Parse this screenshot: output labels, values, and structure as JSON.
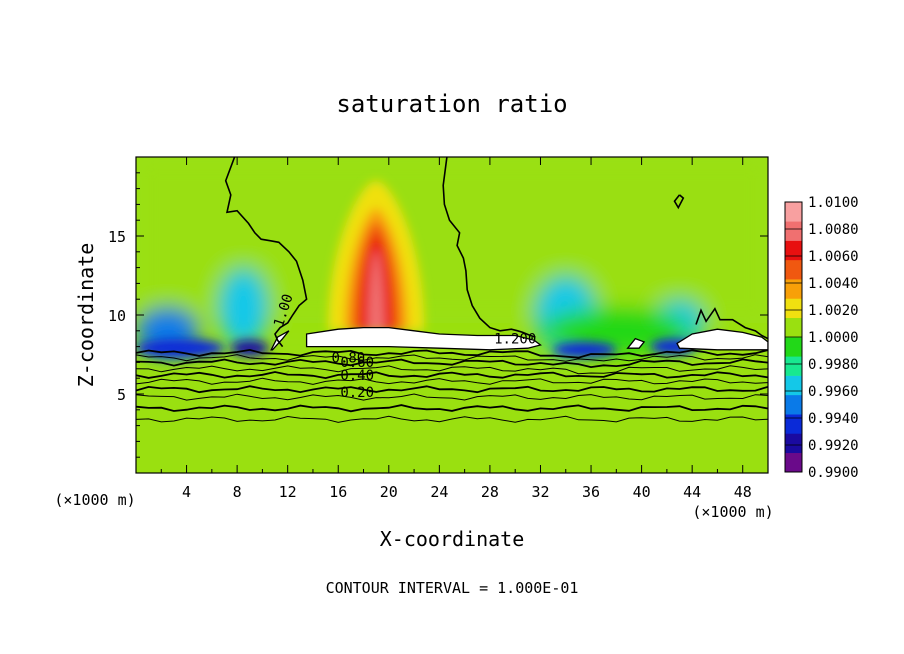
{
  "chart_data": {
    "type": "heatmap",
    "title": "saturation ratio",
    "xlabel": "X-coordinate",
    "ylabel": "Z-coordinate",
    "x_unit_left": "(×1000 m)",
    "x_unit_right": "(×1000 m)",
    "footer": "CONTOUR INTERVAL = 1.000E-01",
    "xlim": [
      0,
      50
    ],
    "ylim": [
      0,
      20
    ],
    "x_ticks": [
      4,
      8,
      12,
      16,
      20,
      24,
      28,
      32,
      36,
      40,
      44,
      48
    ],
    "y_ticks": [
      5,
      10,
      15
    ],
    "colorbar": {
      "labels": [
        "1.0100",
        "1.0080",
        "1.0060",
        "1.0040",
        "1.0020",
        "1.0000",
        "0.9980",
        "0.9960",
        "0.9940",
        "0.9920",
        "0.9900"
      ],
      "min": 0.99,
      "max": 1.01,
      "colors": [
        "#6a0a8a",
        "#1a0aa0",
        "#0a2ad8",
        "#0a7ae8",
        "#14c8e8",
        "#18e890",
        "#22d818",
        "#9ae010",
        "#f0e010",
        "#f8a008",
        "#f05810",
        "#e81010",
        "#f07070",
        "#f8a0a0"
      ]
    },
    "contour_labels": [
      {
        "text": "1.00",
        "x": 12,
        "z": 10.2,
        "angle": -72
      },
      {
        "text": "1.200",
        "x": 30,
        "z": 8.2,
        "angle": 0
      },
      {
        "text": "0.80",
        "x": 16.8,
        "z": 7.0,
        "angle": 0
      },
      {
        "text": "0.60",
        "x": 17.5,
        "z": 6.7,
        "angle": 0
      },
      {
        "text": "0.40",
        "x": 17.5,
        "z": 5.9,
        "angle": 0
      },
      {
        "text": "0.20",
        "x": 17.5,
        "z": 4.8,
        "angle": 0
      }
    ],
    "below_cloud_contours": [
      7.6,
      7.3,
      7.0,
      6.6,
      6.2,
      5.8,
      5.3,
      4.8,
      4.1,
      3.4
    ],
    "features": [
      {
        "kind": "background",
        "value": 1.0002
      },
      {
        "kind": "moist_band",
        "value": 1.0005,
        "x0": 0,
        "x1": 50,
        "z0": 9.5,
        "z1": 20
      },
      {
        "kind": "plume",
        "value": 1.0075,
        "x": 19,
        "z_base": 9.0,
        "height": 9.5,
        "width": 3.8
      },
      {
        "kind": "blob",
        "value": 0.9965,
        "x": 8.5,
        "z": 10.5,
        "rx": 2.0,
        "rz": 2.5
      },
      {
        "kind": "blob",
        "value": 0.9955,
        "x": 2.5,
        "z": 9.0,
        "rx": 2.5,
        "rz": 1.5
      },
      {
        "kind": "blob",
        "value": 0.9965,
        "x": 34,
        "z": 10.0,
        "rx": 2.5,
        "rz": 2.5
      },
      {
        "kind": "blob",
        "value": 0.996,
        "x": 43,
        "z": 9.5,
        "rx": 2.0,
        "rz": 1.5
      },
      {
        "kind": "blob",
        "value": 0.9935,
        "x": 3.5,
        "z": 7.9,
        "rx": 3.5,
        "rz": 0.6
      },
      {
        "kind": "blob",
        "value": 0.9925,
        "x": 9.0,
        "z": 7.9,
        "rx": 1.5,
        "rz": 0.5
      },
      {
        "kind": "blob",
        "value": 0.993,
        "x": 35.5,
        "z": 7.8,
        "rx": 2.5,
        "rz": 0.5
      },
      {
        "kind": "blob",
        "value": 0.9935,
        "x": 42.5,
        "z": 8.0,
        "rx": 1.8,
        "rz": 0.5
      },
      {
        "kind": "blob",
        "value": 0.999,
        "x": 38,
        "z": 9.0,
        "rx": 6,
        "rz": 1.5
      }
    ],
    "clouds": [
      {
        "x": [
          13.5,
          16,
          18,
          20,
          22,
          24,
          27,
          30,
          31.5,
          32,
          31,
          28,
          24,
          20,
          16,
          13.5
        ],
        "z": [
          8.8,
          9.1,
          9.2,
          9.2,
          9.0,
          8.8,
          8.7,
          8.7,
          8.4,
          8.1,
          7.9,
          7.8,
          7.9,
          8.0,
          8.0,
          8.0
        ]
      },
      {
        "x": [
          42.8,
          44,
          46,
          48,
          49.5,
          50,
          50,
          46,
          43,
          42.8
        ],
        "z": [
          8.2,
          8.8,
          9.1,
          8.9,
          8.6,
          8.3,
          7.8,
          7.8,
          7.9,
          8.2
        ]
      },
      {
        "x": [
          10.7,
          11.2,
          12.1,
          11.6,
          10.8,
          10.7
        ],
        "z": [
          7.8,
          8.6,
          9.0,
          8.5,
          7.8,
          7.8
        ]
      },
      {
        "x": [
          38.9,
          39.5,
          40.2,
          39.8,
          38.9
        ],
        "z": [
          7.9,
          8.5,
          8.3,
          7.9,
          7.9
        ]
      }
    ],
    "contour_1_00": [
      {
        "x": [
          7.8,
          7.1,
          7.5,
          7.2,
          8.0,
          8.9,
          9.4,
          9.9,
          10.6,
          11.3,
          12.1,
          12.7,
          13.2,
          13.5,
          12.9,
          12.4,
          12.0,
          11.4,
          11.0,
          11.2,
          11.6
        ],
        "z": [
          20,
          18.5,
          17.6,
          16.5,
          16.6,
          15.8,
          15.2,
          14.8,
          14.7,
          14.6,
          14.0,
          13.4,
          12.2,
          11.0,
          10.6,
          10.0,
          9.5,
          9.2,
          8.8,
          8.4,
          8.0
        ]
      },
      {
        "x": [
          24.6,
          24.3,
          24.4,
          24.8,
          25.6,
          25.4,
          25.9,
          26.1,
          26.2,
          26.6,
          27.2,
          28.0,
          28.8,
          29.7,
          30.2,
          30.6,
          31.2,
          31.6
        ],
        "z": [
          20,
          18.2,
          17.0,
          16.0,
          15.2,
          14.4,
          13.6,
          12.8,
          11.6,
          10.6,
          9.8,
          9.2,
          9.0,
          9.1,
          9.0,
          8.9,
          8.7,
          8.6
        ]
      },
      {
        "x": [
          43.0,
          42.6,
          42.9,
          43.3,
          43.0
        ],
        "z": [
          17.6,
          17.2,
          16.8,
          17.4,
          17.6
        ]
      },
      {
        "x": [
          44.3,
          44.7,
          45.1,
          45.8,
          46.2,
          47.2,
          48.2,
          49.0,
          49.5,
          50
        ],
        "z": [
          9.4,
          10.3,
          9.6,
          10.4,
          9.7,
          9.7,
          9.2,
          9.0,
          8.7,
          8.5
        ]
      }
    ]
  }
}
